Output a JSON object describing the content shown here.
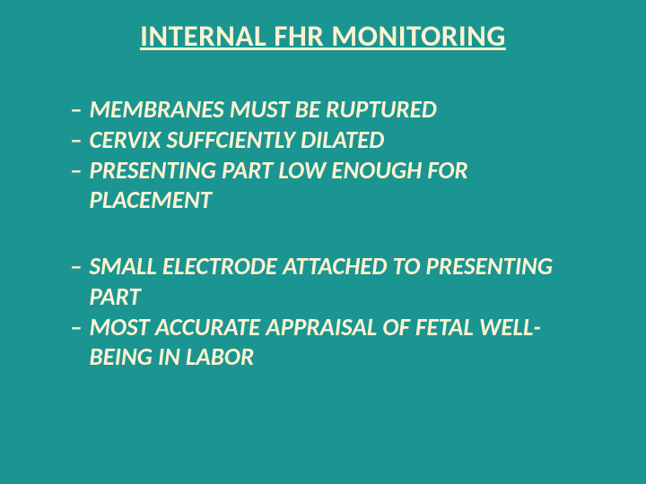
{
  "background_color": "#1b9591",
  "text_color": "#fdf2d0",
  "title": "INTERNAL FHR MONITORING",
  "title_fontsize": 33,
  "title_underline": true,
  "bullet_dash": "–",
  "bullet_fontsize": 27,
  "bullet_italic": true,
  "bullet_bold": true,
  "groups": [
    {
      "items": [
        "MEMBRANES MUST BE RUPTURED",
        "CERVIX SUFFCIENTLY DILATED",
        "PRESENTING PART LOW ENOUGH FOR PLACEMENT"
      ]
    },
    {
      "items": [
        "SMALL ELECTRODE ATTACHED TO PRESENTING PART",
        "MOST ACCURATE APPRAISAL OF FETAL WELL-BEING IN LABOR"
      ]
    }
  ]
}
